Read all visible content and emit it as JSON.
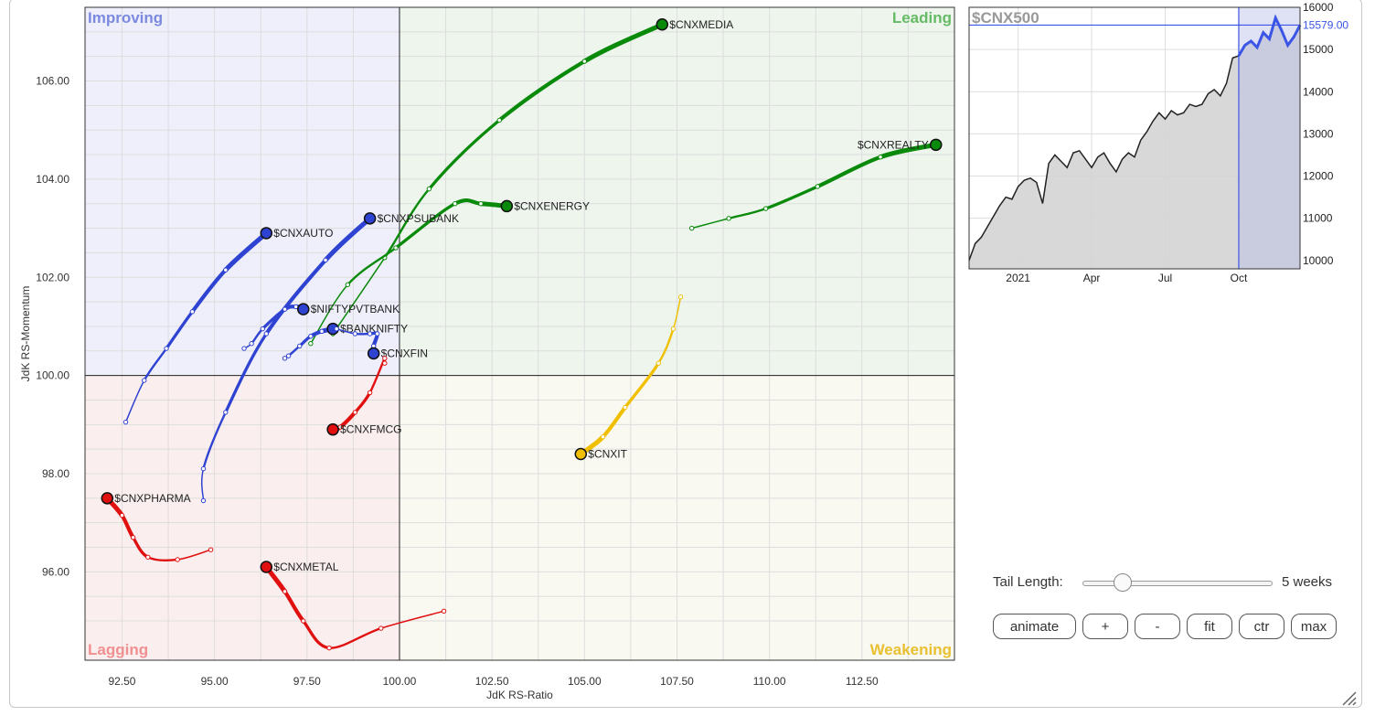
{
  "chart_data": [
    {
      "type": "scatter",
      "title": "",
      "xlabel": "JdK RS-Ratio",
      "ylabel": "JdK RS-Momentum",
      "xlim": [
        91.5,
        115
      ],
      "ylim": [
        94.2,
        107.5
      ],
      "center": [
        100,
        100
      ],
      "grid": true,
      "x_ticks": [
        92.5,
        95,
        97.5,
        100,
        102.5,
        105,
        107.5,
        110,
        112.5
      ],
      "x_tick_labels": [
        "92.50",
        "95.00",
        "97.50",
        "100.00",
        "102.50",
        "105.00",
        "107.50",
        "110.00",
        "112.50"
      ],
      "y_ticks": [
        96,
        98,
        100,
        102,
        104,
        106
      ],
      "y_tick_labels": [
        "96.00",
        "98.00",
        "100.00",
        "102.00",
        "104.00",
        "106.00"
      ],
      "quadrants": [
        {
          "name": "Improving",
          "color": "#7b8ae0",
          "fill": "#eeeffa"
        },
        {
          "name": "Leading",
          "color": "#66bb66",
          "fill": "#edf5ed"
        },
        {
          "name": "Lagging",
          "color": "#f09090",
          "fill": "#fbeeee"
        },
        {
          "name": "Weakening",
          "color": "#e8c030",
          "fill": "#f9f8f1"
        }
      ],
      "series": [
        {
          "name": "$CNXMEDIA",
          "color": "#0a8a0a",
          "points": [
            [
              98.2,
              100.85
            ],
            [
              99.6,
              102.4
            ],
            [
              100.8,
              103.8
            ],
            [
              102.7,
              105.2
            ],
            [
              105.0,
              106.4
            ],
            [
              107.1,
              107.15
            ]
          ]
        },
        {
          "name": "$CNXREALTY",
          "color": "#0a8a0a",
          "points": [
            [
              107.9,
              103.0
            ],
            [
              108.9,
              103.2
            ],
            [
              109.9,
              103.4
            ],
            [
              111.3,
              103.85
            ],
            [
              113.0,
              104.45
            ],
            [
              114.5,
              104.7
            ]
          ]
        },
        {
          "name": "$CNXENERGY",
          "color": "#0a8a0a",
          "points": [
            [
              97.6,
              100.65
            ],
            [
              98.6,
              101.85
            ],
            [
              99.9,
              102.6
            ],
            [
              101.5,
              103.5
            ],
            [
              102.2,
              103.5
            ],
            [
              102.9,
              103.45
            ]
          ]
        },
        {
          "name": "$CNXAUTO",
          "color": "#2f43d2",
          "points": [
            [
              92.6,
              99.05
            ],
            [
              93.1,
              99.9
            ],
            [
              93.7,
              100.55
            ],
            [
              94.4,
              101.3
            ],
            [
              95.3,
              102.15
            ],
            [
              96.4,
              102.9
            ]
          ]
        },
        {
          "name": "$CNXPSUBANK",
          "color": "#2f43d2",
          "points": [
            [
              94.7,
              97.45
            ],
            [
              94.7,
              98.1
            ],
            [
              95.3,
              99.25
            ],
            [
              96.4,
              100.85
            ],
            [
              98.0,
              102.35
            ],
            [
              99.2,
              103.2
            ]
          ]
        },
        {
          "name": "$NIFTYPVTBANK",
          "color": "#2f43d2",
          "points": [
            [
              95.8,
              100.55
            ],
            [
              96.0,
              100.65
            ],
            [
              96.3,
              100.95
            ],
            [
              96.9,
              101.35
            ],
            [
              97.2,
              101.4
            ],
            [
              97.4,
              101.35
            ]
          ]
        },
        {
          "name": "$BANKNIFTY",
          "color": "#2f43d2",
          "points": [
            [
              96.9,
              100.35
            ],
            [
              97.0,
              100.4
            ],
            [
              97.3,
              100.6
            ],
            [
              97.6,
              100.8
            ],
            [
              97.9,
              100.9
            ],
            [
              98.2,
              100.95
            ]
          ]
        },
        {
          "name": "$CNXFIN",
          "color": "#2f43d2",
          "points": [
            [
              98.3,
              100.95
            ],
            [
              98.8,
              100.85
            ],
            [
              99.2,
              100.85
            ],
            [
              99.4,
              100.85
            ],
            [
              99.3,
              100.6
            ],
            [
              99.3,
              100.45
            ]
          ]
        },
        {
          "name": "$CNXFMCG",
          "color": "#e01010",
          "points": [
            [
              99.6,
              100.25
            ],
            [
              99.6,
              100.35
            ],
            [
              99.2,
              99.65
            ],
            [
              98.8,
              99.25
            ],
            [
              98.4,
              98.95
            ],
            [
              98.2,
              98.9
            ]
          ]
        },
        {
          "name": "$CNXIT",
          "color": "#f0c000",
          "points": [
            [
              107.6,
              101.6
            ],
            [
              107.4,
              100.95
            ],
            [
              107.0,
              100.25
            ],
            [
              106.1,
              99.35
            ],
            [
              105.5,
              98.75
            ],
            [
              104.9,
              98.4
            ]
          ]
        },
        {
          "name": "$CNXPHARMA",
          "color": "#e01010",
          "points": [
            [
              94.9,
              96.45
            ],
            [
              94.0,
              96.25
            ],
            [
              93.2,
              96.3
            ],
            [
              92.8,
              96.7
            ],
            [
              92.5,
              97.15
            ],
            [
              92.1,
              97.5
            ]
          ]
        },
        {
          "name": "$CNXMETAL",
          "color": "#e01010",
          "points": [
            [
              101.2,
              95.2
            ],
            [
              99.5,
              94.85
            ],
            [
              98.1,
              94.45
            ],
            [
              97.4,
              95.0
            ],
            [
              96.9,
              95.6
            ],
            [
              96.4,
              96.1
            ]
          ]
        }
      ]
    },
    {
      "type": "area",
      "title": "$CNX500",
      "xlabel": "",
      "ylabel": "",
      "ylim": [
        9800,
        16000
      ],
      "y_ticks": [
        10000,
        11000,
        12000,
        13000,
        14000,
        15000,
        16000
      ],
      "x_tick_labels": [
        "2021",
        "Apr",
        "Jul",
        "Oct"
      ],
      "x_tick_weeks": [
        8,
        20,
        32,
        44
      ],
      "current_value": 15579,
      "current_label": "15579.00",
      "marker_week": 44,
      "line_color": "#222222",
      "highlight_color": "#3b55e6",
      "values": [
        10000,
        10400,
        10550,
        10800,
        11050,
        11300,
        11500,
        11450,
        11750,
        11900,
        11950,
        11850,
        11350,
        12300,
        12500,
        12350,
        12200,
        12550,
        12600,
        12400,
        12200,
        12450,
        12550,
        12300,
        12100,
        12400,
        12550,
        12450,
        12850,
        13050,
        13300,
        13500,
        13350,
        13550,
        13450,
        13500,
        13700,
        13650,
        13700,
        13950,
        14050,
        13900,
        14200,
        14800,
        14850,
        15100,
        15200,
        15050,
        15400,
        15250,
        15750,
        15450,
        15100,
        15300,
        15579
      ]
    }
  ],
  "controls": {
    "tail_label": "Tail Length:",
    "tail_value": "5 weeks",
    "tail_fraction": 0.2,
    "buttons": [
      "animate",
      "+",
      "-",
      "fit",
      "ctr",
      "max"
    ]
  },
  "icons": {
    "resize": "resize-grip-icon",
    "slider": "slider-knob-icon"
  }
}
